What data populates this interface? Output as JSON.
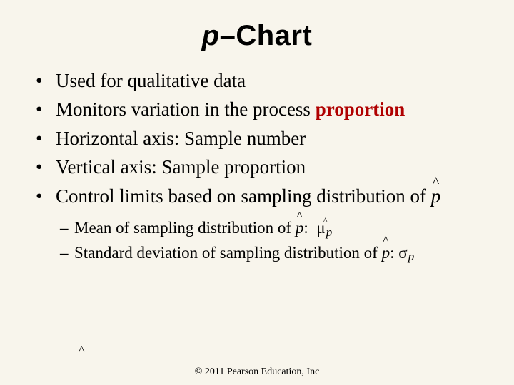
{
  "slide": {
    "background_color": "#f8f5ec",
    "text_color": "#000000",
    "emphasis_color": "#b00000",
    "title": {
      "prefix_italic": "p",
      "suffix": "–Chart",
      "font_family": "Arial",
      "font_size_pt": 40,
      "font_weight": "bold"
    },
    "bullets": {
      "font_family": "Times New Roman",
      "font_size_pt": 27,
      "items": [
        {
          "text": "Used for qualitative data"
        },
        {
          "text_before": "Monitors variation in the process ",
          "emphasis": "proportion"
        },
        {
          "text": "Horizontal axis: Sample number"
        },
        {
          "text": "Vertical axis: Sample proportion"
        },
        {
          "text_before": "Control limits based on sampling distribution of ",
          "phat": true
        }
      ]
    },
    "sub_bullets": {
      "font_size_pt": 23,
      "items": [
        {
          "text_before": "Mean of sampling distribution of ",
          "phat": true,
          "after_colon": ":",
          "symbol": "μ",
          "symbol_sub": "p"
        },
        {
          "text_before": "Standard deviation of sampling distribution of ",
          "phat": true,
          "after_colon": ":",
          "symbol": "σ",
          "symbol_sub": "p"
        }
      ]
    },
    "stray_hat": "^",
    "footer": "© 2011 Pearson Education, Inc"
  }
}
